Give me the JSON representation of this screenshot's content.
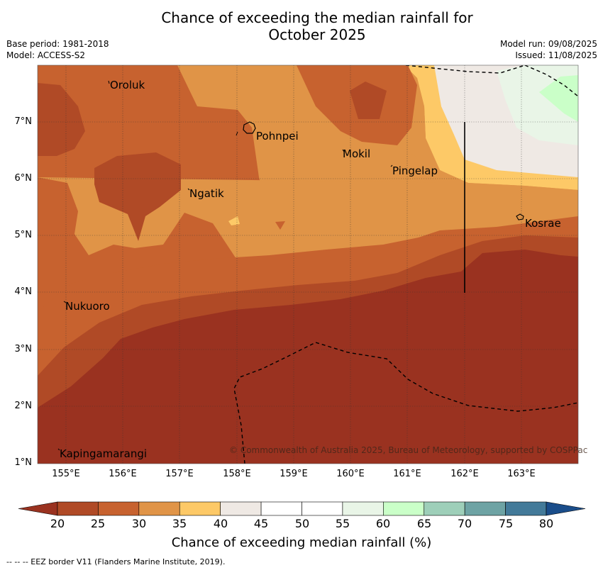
{
  "title_line1": "Chance of exceeding the median rainfall for",
  "title_line2": "October 2025",
  "meta": {
    "base_period": "Base period: 1981-2018",
    "model": "Model: ACCESS-S2",
    "model_run": "Model run: 09/08/2025",
    "issued": "Issued: 11/08/2025"
  },
  "axes": {
    "x_ticks": [
      "155°E",
      "156°E",
      "157°E",
      "158°E",
      "159°E",
      "160°E",
      "161°E",
      "162°E",
      "163°E"
    ],
    "y_ticks": [
      "7°N",
      "6°N",
      "5°N",
      "4°N",
      "3°N",
      "2°N",
      "1°N"
    ],
    "lon_range": [
      154.5,
      164.0
    ],
    "lat_range": [
      1.0,
      8.0
    ]
  },
  "places": [
    {
      "name": "Oroluk",
      "lon": 155.7,
      "lat": 7.6
    },
    {
      "name": "Pohnpei",
      "lon": 158.3,
      "lat": 6.9
    },
    {
      "name": "Mokil",
      "lon": 159.9,
      "lat": 6.7
    },
    {
      "name": "Pingelap",
      "lon": 160.7,
      "lat": 6.2
    },
    {
      "name": "Ngatik",
      "lon": 157.1,
      "lat": 5.8
    },
    {
      "name": "Kosrae",
      "lon": 163.0,
      "lat": 5.3
    },
    {
      "name": "Nukuoro",
      "lon": 154.9,
      "lat": 3.8
    },
    {
      "name": "Kapingamarangi",
      "lon": 154.8,
      "lat": 1.1
    }
  ],
  "copyright": "© Commonwealth of Australia 2025, Bureau of Meteorology, supported by COSPPac",
  "colorbar": {
    "ticks": [
      "20",
      "25",
      "30",
      "35",
      "40",
      "45",
      "50",
      "55",
      "60",
      "65",
      "70",
      "75",
      "80"
    ],
    "colors": [
      "#b04a26",
      "#c7622f",
      "#e09447",
      "#fdc967",
      "#efe9e4",
      "#ffffff",
      "#ffffff",
      "#e9f5e7",
      "#caffc8",
      "#9ecfb9",
      "#6ea3a4",
      "#437a99"
    ],
    "under_color": "#9a3220",
    "over_color": "#1a4d8a",
    "label": "Chance of exceeding median rainfall (%)"
  },
  "footer": "--  --  -- EEZ border V11 (Flanders Marine Institute, 2019)."
}
